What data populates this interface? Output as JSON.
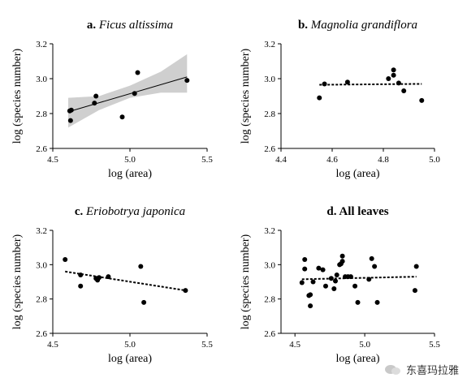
{
  "chart_data": [
    {
      "type": "scatter",
      "panel_letter": "a.",
      "title": "Ficus altissima",
      "title_italic": true,
      "xlabel": "log (area)",
      "ylabel": "log (species number)",
      "xlim": [
        4.5,
        5.5
      ],
      "ylim": [
        2.6,
        3.2
      ],
      "xticks": [
        "4.5",
        "5.0",
        "5.5"
      ],
      "yticks": [
        "2.6",
        "2.8",
        "3.0",
        "3.2"
      ],
      "points": [
        [
          4.61,
          2.815
        ],
        [
          4.62,
          2.82
        ],
        [
          4.615,
          2.76
        ],
        [
          4.77,
          2.86
        ],
        [
          4.78,
          2.9
        ],
        [
          4.95,
          2.78
        ],
        [
          5.03,
          2.915
        ],
        [
          5.05,
          3.035
        ],
        [
          5.37,
          2.99
        ]
      ],
      "fit": {
        "style": "solid",
        "x": [
          4.6,
          5.37
        ],
        "y": [
          2.81,
          3.01
        ]
      },
      "confidence_band": {
        "x": [
          4.6,
          4.8,
          5.0,
          5.2,
          5.37
        ],
        "lower": [
          2.72,
          2.82,
          2.89,
          2.92,
          2.92
        ],
        "upper": [
          2.89,
          2.9,
          2.96,
          3.04,
          3.14
        ],
        "color": "#cfcfcf"
      }
    },
    {
      "type": "scatter",
      "panel_letter": "b.",
      "title": "Magnolia grandiflora",
      "title_italic": true,
      "xlabel": "log (area)",
      "ylabel": "log (species number)",
      "xlim": [
        4.4,
        5.0
      ],
      "ylim": [
        2.6,
        3.2
      ],
      "xticks": [
        "4.4",
        "4.6",
        "4.8",
        "5.0"
      ],
      "yticks": [
        "2.6",
        "2.8",
        "3.0",
        "3.2"
      ],
      "points": [
        [
          4.55,
          2.89
        ],
        [
          4.57,
          2.97
        ],
        [
          4.66,
          2.98
        ],
        [
          4.82,
          3.0
        ],
        [
          4.84,
          3.05
        ],
        [
          4.84,
          3.02
        ],
        [
          4.86,
          2.975
        ],
        [
          4.88,
          2.93
        ],
        [
          4.95,
          2.875
        ]
      ],
      "fit": {
        "style": "dashed",
        "x": [
          4.55,
          4.95
        ],
        "y": [
          2.965,
          2.97
        ]
      }
    },
    {
      "type": "scatter",
      "panel_letter": "c.",
      "title": "Eriobotrya japonica",
      "title_italic": true,
      "xlabel": "log (area)",
      "ylabel": "log (species number)",
      "xlim": [
        4.5,
        5.5
      ],
      "ylim": [
        2.6,
        3.2
      ],
      "xticks": [
        "4.5",
        "5.0",
        "5.5"
      ],
      "yticks": [
        "2.6",
        "2.8",
        "3.0",
        "3.2"
      ],
      "points": [
        [
          4.58,
          3.03
        ],
        [
          4.68,
          2.94
        ],
        [
          4.68,
          2.875
        ],
        [
          4.78,
          2.92
        ],
        [
          4.79,
          2.91
        ],
        [
          4.8,
          2.925
        ],
        [
          4.86,
          2.93
        ],
        [
          5.07,
          2.99
        ],
        [
          5.09,
          2.78
        ],
        [
          5.36,
          2.85
        ]
      ],
      "fit": {
        "style": "dashed",
        "x": [
          4.58,
          5.36
        ],
        "y": [
          2.96,
          2.85
        ]
      }
    },
    {
      "type": "scatter",
      "panel_letter": "d.",
      "title": "All leaves",
      "title_italic": false,
      "xlabel": "log (area)",
      "ylabel": "log (species number)",
      "xlim": [
        4.4,
        5.5
      ],
      "ylim": [
        2.6,
        3.2
      ],
      "xticks": [
        "4.5",
        "5.0",
        "5.5"
      ],
      "yticks": [
        "2.6",
        "2.8",
        "3.0",
        "3.2"
      ],
      "points": [
        [
          4.55,
          2.895
        ],
        [
          4.57,
          3.03
        ],
        [
          4.57,
          2.975
        ],
        [
          4.6,
          2.82
        ],
        [
          4.61,
          2.825
        ],
        [
          4.61,
          2.76
        ],
        [
          4.63,
          2.9
        ],
        [
          4.67,
          2.98
        ],
        [
          4.7,
          2.97
        ],
        [
          4.72,
          2.875
        ],
        [
          4.76,
          2.92
        ],
        [
          4.78,
          2.86
        ],
        [
          4.79,
          2.905
        ],
        [
          4.8,
          2.94
        ],
        [
          4.82,
          3.0
        ],
        [
          4.83,
          3.005
        ],
        [
          4.84,
          3.05
        ],
        [
          4.84,
          3.02
        ],
        [
          4.86,
          2.93
        ],
        [
          4.88,
          2.93
        ],
        [
          4.9,
          2.93
        ],
        [
          4.93,
          2.875
        ],
        [
          4.95,
          2.78
        ],
        [
          5.03,
          2.915
        ],
        [
          5.05,
          3.035
        ],
        [
          5.07,
          2.99
        ],
        [
          5.09,
          2.78
        ],
        [
          5.36,
          2.85
        ],
        [
          5.37,
          2.99
        ]
      ],
      "fit": {
        "style": "dashed",
        "x": [
          4.55,
          5.37
        ],
        "y": [
          2.915,
          2.93
        ]
      }
    }
  ],
  "watermark": {
    "text": "东喜玛拉雅",
    "icon": "chat-bubbles-icon"
  }
}
